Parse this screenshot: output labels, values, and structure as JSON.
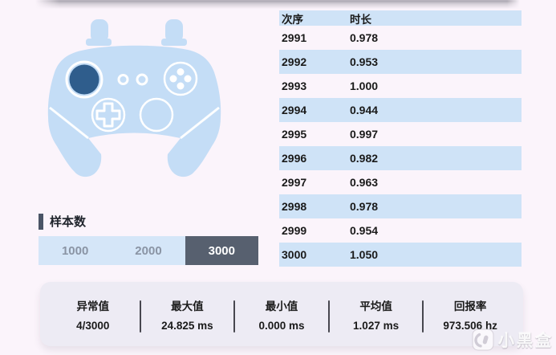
{
  "colors": {
    "page-bg": "#fbf4fb",
    "table-blue": "#cfe3f7",
    "controller-blue": "#c4ddf6",
    "stick-dark-blue": "#2f5d8c",
    "selected-dark": "#57606f",
    "segment-blue": "#d5e6f8",
    "segment-text": "#8a94a4",
    "card-bg": "#edebf4",
    "text-dark": "#1a1a1a",
    "marker-dark": "#4a5466"
  },
  "table": {
    "columns": [
      "次序",
      "时长"
    ],
    "rows": [
      [
        "2991",
        "0.978"
      ],
      [
        "2992",
        "0.953"
      ],
      [
        "2993",
        "1.000"
      ],
      [
        "2994",
        "0.944"
      ],
      [
        "2995",
        "0.997"
      ],
      [
        "2996",
        "0.982"
      ],
      [
        "2997",
        "0.963"
      ],
      [
        "2998",
        "0.978"
      ],
      [
        "2999",
        "0.954"
      ],
      [
        "3000",
        "1.050"
      ]
    ]
  },
  "sample": {
    "label": "样本数",
    "options": [
      "1000",
      "2000",
      "3000"
    ],
    "selected": "3000"
  },
  "stats": [
    {
      "label": "异常值",
      "value": "4/3000"
    },
    {
      "label": "最大值",
      "value": "24.825 ms"
    },
    {
      "label": "最小值",
      "value": "0.000 ms"
    },
    {
      "label": "平均值",
      "value": "1.027 ms"
    },
    {
      "label": "回报率",
      "value": "973.506 hz"
    }
  ],
  "watermark": {
    "text": "小黑盒"
  }
}
